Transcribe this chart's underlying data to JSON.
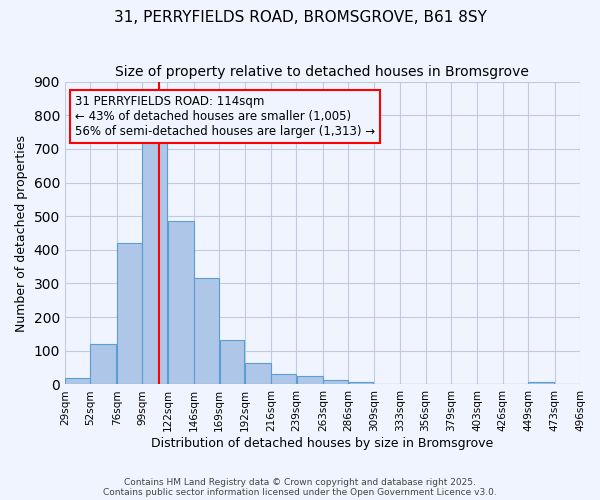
{
  "title": "31, PERRYFIELDS ROAD, BROMSGROVE, B61 8SY",
  "subtitle": "Size of property relative to detached houses in Bromsgrove",
  "xlabel": "Distribution of detached houses by size in Bromsgrove",
  "ylabel": "Number of detached properties",
  "bar_color": "#aec6e8",
  "bar_edge_color": "#5a9fd4",
  "bg_color": "#f0f4ff",
  "grid_color": "#c0ccdd",
  "bins": [
    29,
    52,
    76,
    99,
    122,
    146,
    169,
    192,
    216,
    239,
    263,
    286,
    309,
    333,
    356,
    379,
    403,
    426,
    449,
    473,
    496
  ],
  "counts": [
    20,
    120,
    420,
    740,
    485,
    315,
    133,
    65,
    30,
    25,
    12,
    7,
    0,
    0,
    0,
    0,
    0,
    0,
    7,
    0
  ],
  "tick_labels": [
    "29sqm",
    "52sqm",
    "76sqm",
    "99sqm",
    "122sqm",
    "146sqm",
    "169sqm",
    "192sqm",
    "216sqm",
    "239sqm",
    "263sqm",
    "286sqm",
    "309sqm",
    "333sqm",
    "356sqm",
    "379sqm",
    "403sqm",
    "426sqm",
    "449sqm",
    "473sqm",
    "496sqm"
  ],
  "vline_x": 114,
  "vline_color": "red",
  "annotation_title": "31 PERRYFIELDS ROAD: 114sqm",
  "annotation_line1": "← 43% of detached houses are smaller (1,005)",
  "annotation_line2": "56% of semi-detached houses are larger (1,313) →",
  "box_color": "red",
  "ylim": [
    0,
    900
  ],
  "footer1": "Contains HM Land Registry data © Crown copyright and database right 2025.",
  "footer2": "Contains public sector information licensed under the Open Government Licence v3.0.",
  "title_fontsize": 11,
  "subtitle_fontsize": 10,
  "ylabel_fontsize": 9,
  "xlabel_fontsize": 9
}
